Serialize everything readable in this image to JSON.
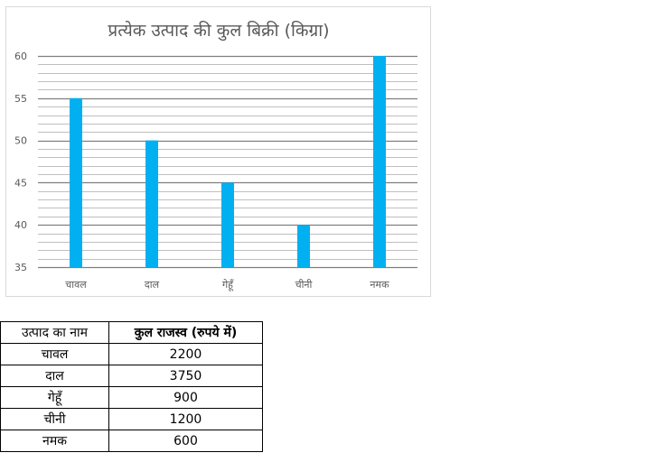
{
  "chart_data": {
    "type": "bar",
    "title": "प्रत्येक उत्पाद की कुल बिक्री (किग्रा)",
    "categories": [
      "चावल",
      "दाल",
      "गेहूँ",
      "चीनी",
      "नमक"
    ],
    "values": [
      55,
      50,
      45,
      40,
      60
    ],
    "ylim": [
      35,
      60
    ],
    "yticks": [
      35,
      40,
      45,
      50,
      55,
      60
    ],
    "minor_gridlines_per_major": 5,
    "grid": true,
    "legend": "none",
    "bar_color": "#00b0f0",
    "major_grid_color": "#7f7f7f",
    "minor_grid_color": "#bfbfbf"
  },
  "table": {
    "headers": [
      "उत्पाद का नाम",
      "कुल राजस्व (रुपये में)"
    ],
    "rows": [
      [
        "चावल",
        "2200"
      ],
      [
        "दाल",
        "3750"
      ],
      [
        "गेहूँ",
        "900"
      ],
      [
        "चीनी",
        "1200"
      ],
      [
        "नमक",
        "600"
      ]
    ]
  }
}
